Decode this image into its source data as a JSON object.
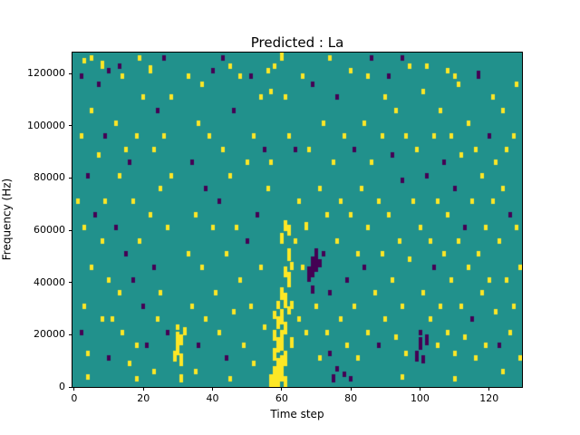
{
  "chart_data": {
    "type": "heatmap",
    "title": "Predicted : La",
    "xlabel": "Time step",
    "ylabel": "Frequency (Hz)",
    "x_ticks": [
      0,
      20,
      40,
      60,
      80,
      100,
      120
    ],
    "y_ticks": [
      0,
      20000,
      40000,
      60000,
      80000,
      100000,
      120000
    ],
    "x_range": [
      -0.5,
      129.5
    ],
    "y_range": [
      0,
      128000
    ],
    "grid_shape": [
      130,
      128
    ],
    "grid": false,
    "legend": "none",
    "colors": {
      "background": "#21918c",
      "positive": "#fde725",
      "negative": "#440154",
      "figure_background": "#ffffff",
      "axes_line": "#000000"
    },
    "cells_encoding": "[time_step, freq_bin(1000Hz per bin), value(1=yellow-high, 2=purple-low), vertical_span_bins]",
    "cells": [
      [
        57,
        0,
        1,
        5
      ],
      [
        57,
        85,
        1,
        2
      ],
      [
        57,
        112,
        1,
        2
      ],
      [
        58,
        0,
        1,
        4
      ],
      [
        58,
        2,
        1,
        6
      ],
      [
        58,
        10,
        1,
        5
      ],
      [
        58,
        18,
        1,
        4
      ],
      [
        58,
        26,
        1,
        3
      ],
      [
        58,
        122,
        1,
        2
      ],
      [
        59,
        0,
        1,
        3
      ],
      [
        59,
        3,
        1,
        8
      ],
      [
        59,
        13,
        1,
        6
      ],
      [
        59,
        22,
        1,
        5
      ],
      [
        59,
        30,
        1,
        3
      ],
      [
        60,
        2,
        1,
        10
      ],
      [
        60,
        14,
        1,
        8
      ],
      [
        60,
        24,
        1,
        6
      ],
      [
        60,
        33,
        1,
        5
      ],
      [
        60,
        55,
        1,
        4
      ],
      [
        60,
        125,
        1,
        3
      ],
      [
        61,
        0,
        1,
        4
      ],
      [
        61,
        8,
        1,
        6
      ],
      [
        61,
        20,
        1,
        5
      ],
      [
        61,
        30,
        1,
        6
      ],
      [
        61,
        42,
        1,
        4
      ],
      [
        61,
        60,
        1,
        4
      ],
      [
        61,
        110,
        1,
        2
      ],
      [
        62,
        28,
        1,
        3
      ],
      [
        62,
        38,
        1,
        6
      ],
      [
        62,
        48,
        1,
        5
      ],
      [
        62,
        58,
        1,
        4
      ],
      [
        62,
        95,
        1,
        2
      ],
      [
        63,
        15,
        1,
        4
      ],
      [
        63,
        30,
        1,
        3
      ],
      [
        63,
        45,
        1,
        3
      ],
      [
        29,
        10,
        1,
        4
      ],
      [
        30,
        12,
        1,
        6
      ],
      [
        30,
        18,
        1,
        3
      ],
      [
        30,
        22,
        1,
        2
      ],
      [
        31,
        2,
        1,
        3
      ],
      [
        31,
        8,
        1,
        5
      ],
      [
        31,
        16,
        1,
        4
      ],
      [
        32,
        20,
        1,
        3
      ],
      [
        68,
        40,
        2,
        6
      ],
      [
        69,
        36,
        2,
        3
      ],
      [
        69,
        42,
        2,
        8
      ],
      [
        70,
        44,
        2,
        6
      ],
      [
        70,
        50,
        2,
        3
      ],
      [
        71,
        46,
        2,
        3
      ],
      [
        99,
        10,
        2,
        4
      ],
      [
        100,
        14,
        2,
        5
      ],
      [
        100,
        20,
        2,
        2
      ],
      [
        101,
        9,
        2,
        3
      ],
      [
        102,
        16,
        2,
        4
      ],
      [
        74,
        12,
        2,
        2
      ],
      [
        75,
        2,
        2,
        3
      ],
      [
        76,
        6,
        2,
        2
      ],
      [
        78,
        4,
        2,
        2
      ],
      [
        80,
        2,
        2,
        2
      ],
      [
        4,
        3,
        1,
        2
      ],
      [
        18,
        2,
        1,
        2
      ],
      [
        45,
        2,
        1,
        2
      ],
      [
        95,
        3,
        1,
        2
      ],
      [
        110,
        2,
        1,
        2
      ],
      [
        124,
        5,
        1,
        2
      ],
      [
        2,
        95,
        1,
        2
      ],
      [
        2,
        118,
        2,
        2
      ],
      [
        2,
        20,
        2,
        2
      ],
      [
        1,
        70,
        1,
        2
      ],
      [
        3,
        60,
        1,
        2
      ],
      [
        3,
        30,
        1,
        2
      ],
      [
        3,
        124,
        1,
        2
      ],
      [
        4,
        80,
        2,
        2
      ],
      [
        4,
        12,
        1,
        2
      ],
      [
        5,
        45,
        1,
        2
      ],
      [
        5,
        105,
        1,
        2
      ],
      [
        5,
        125,
        1,
        2
      ],
      [
        6,
        65,
        2,
        2
      ],
      [
        7,
        115,
        2,
        2
      ],
      [
        7,
        88,
        1,
        2
      ],
      [
        8,
        55,
        1,
        2
      ],
      [
        8,
        25,
        1,
        2
      ],
      [
        8,
        122,
        1,
        3
      ],
      [
        9,
        95,
        2,
        2
      ],
      [
        9,
        70,
        1,
        2
      ],
      [
        10,
        40,
        1,
        2
      ],
      [
        10,
        10,
        2,
        2
      ],
      [
        10,
        120,
        2,
        2
      ],
      [
        11,
        25,
        1,
        2
      ],
      [
        12,
        100,
        1,
        2
      ],
      [
        12,
        60,
        2,
        2
      ],
      [
        13,
        35,
        1,
        2
      ],
      [
        13,
        80,
        1,
        2
      ],
      [
        13,
        122,
        2,
        2
      ],
      [
        14,
        20,
        1,
        2
      ],
      [
        14,
        118,
        1,
        2
      ],
      [
        15,
        50,
        2,
        2
      ],
      [
        15,
        90,
        1,
        2
      ],
      [
        16,
        85,
        2,
        2
      ],
      [
        16,
        8,
        1,
        2
      ],
      [
        17,
        70,
        1,
        2
      ],
      [
        17,
        40,
        2,
        2
      ],
      [
        18,
        95,
        1,
        2
      ],
      [
        18,
        15,
        1,
        2
      ],
      [
        19,
        55,
        1,
        2
      ],
      [
        19,
        125,
        1,
        2
      ],
      [
        20,
        110,
        1,
        2
      ],
      [
        20,
        30,
        2,
        2
      ],
      [
        21,
        15,
        2,
        2
      ],
      [
        22,
        120,
        1,
        3
      ],
      [
        22,
        65,
        1,
        2
      ],
      [
        23,
        45,
        2,
        2
      ],
      [
        23,
        90,
        1,
        2
      ],
      [
        23,
        5,
        1,
        2
      ],
      [
        24,
        25,
        1,
        2
      ],
      [
        24,
        105,
        2,
        2
      ],
      [
        25,
        75,
        1,
        2
      ],
      [
        25,
        35,
        1,
        2
      ],
      [
        26,
        95,
        1,
        2
      ],
      [
        26,
        125,
        2,
        2
      ],
      [
        27,
        60,
        1,
        2
      ],
      [
        27,
        20,
        2,
        2
      ],
      [
        28,
        110,
        1,
        2
      ],
      [
        28,
        80,
        1,
        2
      ],
      [
        33,
        50,
        1,
        2
      ],
      [
        33,
        118,
        1,
        2
      ],
      [
        34,
        85,
        2,
        2
      ],
      [
        34,
        30,
        1,
        2
      ],
      [
        35,
        65,
        1,
        2
      ],
      [
        35,
        5,
        1,
        2
      ],
      [
        36,
        15,
        2,
        2
      ],
      [
        36,
        100,
        1,
        2
      ],
      [
        37,
        45,
        1,
        2
      ],
      [
        37,
        115,
        1,
        2
      ],
      [
        38,
        75,
        2,
        2
      ],
      [
        38,
        25,
        1,
        2
      ],
      [
        39,
        95,
        1,
        2
      ],
      [
        40,
        60,
        1,
        2
      ],
      [
        40,
        120,
        2,
        2
      ],
      [
        41,
        35,
        1,
        2
      ],
      [
        42,
        70,
        2,
        2
      ],
      [
        42,
        20,
        1,
        2
      ],
      [
        43,
        90,
        1,
        2
      ],
      [
        43,
        125,
        2,
        2
      ],
      [
        44,
        50,
        1,
        2
      ],
      [
        44,
        10,
        2,
        2
      ],
      [
        45,
        80,
        1,
        2
      ],
      [
        45,
        122,
        1,
        2
      ],
      [
        46,
        28,
        1,
        2
      ],
      [
        46,
        105,
        2,
        2
      ],
      [
        47,
        60,
        1,
        2
      ],
      [
        48,
        40,
        1,
        2
      ],
      [
        48,
        118,
        1,
        2
      ],
      [
        49,
        15,
        1,
        2
      ],
      [
        50,
        85,
        1,
        2
      ],
      [
        50,
        55,
        2,
        2
      ],
      [
        51,
        30,
        1,
        2
      ],
      [
        51,
        118,
        2,
        2
      ],
      [
        52,
        95,
        1,
        2
      ],
      [
        52,
        8,
        1,
        2
      ],
      [
        53,
        65,
        2,
        2
      ],
      [
        54,
        45,
        1,
        2
      ],
      [
        54,
        110,
        1,
        2
      ],
      [
        55,
        22,
        1,
        2
      ],
      [
        55,
        90,
        2,
        2
      ],
      [
        56,
        75,
        1,
        2
      ],
      [
        56,
        120,
        1,
        2
      ],
      [
        64,
        55,
        1,
        2
      ],
      [
        64,
        90,
        2,
        2
      ],
      [
        65,
        25,
        1,
        2
      ],
      [
        65,
        70,
        1,
        2
      ],
      [
        66,
        45,
        1,
        2
      ],
      [
        66,
        118,
        1,
        2
      ],
      [
        67,
        60,
        1,
        3
      ],
      [
        67,
        20,
        1,
        2
      ],
      [
        68,
        90,
        1,
        2
      ],
      [
        69,
        115,
        2,
        2
      ],
      [
        70,
        30,
        1,
        2
      ],
      [
        71,
        75,
        1,
        2
      ],
      [
        71,
        10,
        1,
        2
      ],
      [
        72,
        50,
        2,
        2
      ],
      [
        72,
        100,
        1,
        2
      ],
      [
        73,
        65,
        1,
        2
      ],
      [
        73,
        20,
        1,
        2
      ],
      [
        74,
        35,
        2,
        2
      ],
      [
        74,
        125,
        1,
        2
      ],
      [
        75,
        85,
        1,
        2
      ],
      [
        76,
        55,
        1,
        2
      ],
      [
        76,
        110,
        2,
        2
      ],
      [
        77,
        25,
        1,
        2
      ],
      [
        77,
        70,
        1,
        2
      ],
      [
        78,
        95,
        1,
        2
      ],
      [
        79,
        40,
        2,
        2
      ],
      [
        79,
        15,
        1,
        2
      ],
      [
        80,
        65,
        1,
        2
      ],
      [
        80,
        120,
        1,
        2
      ],
      [
        81,
        30,
        1,
        2
      ],
      [
        81,
        90,
        2,
        2
      ],
      [
        82,
        50,
        1,
        2
      ],
      [
        82,
        10,
        1,
        2
      ],
      [
        83,
        75,
        1,
        2
      ],
      [
        84,
        45,
        2,
        2
      ],
      [
        84,
        100,
        1,
        2
      ],
      [
        85,
        20,
        1,
        2
      ],
      [
        85,
        60,
        1,
        2
      ],
      [
        85,
        118,
        1,
        2
      ],
      [
        86,
        85,
        1,
        2
      ],
      [
        86,
        125,
        2,
        2
      ],
      [
        87,
        35,
        1,
        2
      ],
      [
        88,
        70,
        1,
        2
      ],
      [
        88,
        15,
        2,
        2
      ],
      [
        89,
        95,
        1,
        2
      ],
      [
        89,
        50,
        1,
        2
      ],
      [
        90,
        110,
        1,
        2
      ],
      [
        90,
        25,
        1,
        2
      ],
      [
        91,
        65,
        1,
        2
      ],
      [
        91,
        118,
        2,
        2
      ],
      [
        92,
        40,
        1,
        2
      ],
      [
        92,
        88,
        2,
        2
      ],
      [
        93,
        18,
        1,
        2
      ],
      [
        93,
        105,
        1,
        2
      ],
      [
        94,
        55,
        1,
        2
      ],
      [
        95,
        78,
        2,
        2
      ],
      [
        95,
        30,
        1,
        2
      ],
      [
        95,
        125,
        2,
        2
      ],
      [
        96,
        95,
        1,
        2
      ],
      [
        96,
        12,
        1,
        2
      ],
      [
        97,
        48,
        1,
        2
      ],
      [
        97,
        122,
        1,
        2
      ],
      [
        98,
        70,
        1,
        2
      ],
      [
        99,
        90,
        1,
        2
      ],
      [
        100,
        60,
        1,
        2
      ],
      [
        101,
        35,
        1,
        2
      ],
      [
        101,
        112,
        1,
        2
      ],
      [
        102,
        80,
        2,
        2
      ],
      [
        102,
        122,
        1,
        2
      ],
      [
        103,
        25,
        1,
        2
      ],
      [
        103,
        55,
        1,
        2
      ],
      [
        104,
        95,
        1,
        2
      ],
      [
        104,
        45,
        2,
        2
      ],
      [
        105,
        70,
        1,
        2
      ],
      [
        105,
        15,
        1,
        2
      ],
      [
        106,
        105,
        1,
        2
      ],
      [
        106,
        30,
        1,
        2
      ],
      [
        107,
        50,
        1,
        2
      ],
      [
        107,
        85,
        2,
        2
      ],
      [
        108,
        20,
        1,
        2
      ],
      [
        108,
        65,
        1,
        2
      ],
      [
        108,
        120,
        1,
        2
      ],
      [
        109,
        95,
        1,
        2
      ],
      [
        109,
        40,
        1,
        2
      ],
      [
        110,
        75,
        2,
        2
      ],
      [
        110,
        12,
        1,
        2
      ],
      [
        110,
        118,
        1,
        2
      ],
      [
        111,
        55,
        1,
        2
      ],
      [
        111,
        115,
        1,
        2
      ],
      [
        112,
        30,
        1,
        2
      ],
      [
        112,
        88,
        1,
        2
      ],
      [
        113,
        60,
        2,
        2
      ],
      [
        113,
        18,
        1,
        2
      ],
      [
        114,
        100,
        1,
        2
      ],
      [
        114,
        45,
        1,
        2
      ],
      [
        115,
        70,
        1,
        2
      ],
      [
        115,
        25,
        2,
        2
      ],
      [
        116,
        90,
        1,
        2
      ],
      [
        116,
        10,
        1,
        2
      ],
      [
        117,
        50,
        1,
        2
      ],
      [
        117,
        118,
        2,
        3
      ],
      [
        118,
        35,
        1,
        2
      ],
      [
        118,
        80,
        1,
        2
      ],
      [
        119,
        60,
        1,
        2
      ],
      [
        119,
        15,
        1,
        2
      ],
      [
        120,
        95,
        2,
        2
      ],
      [
        120,
        40,
        1,
        2
      ],
      [
        121,
        70,
        1,
        2
      ],
      [
        121,
        110,
        1,
        2
      ],
      [
        122,
        28,
        1,
        2
      ],
      [
        122,
        85,
        1,
        2
      ],
      [
        123,
        55,
        1,
        2
      ],
      [
        123,
        15,
        2,
        2
      ],
      [
        124,
        75,
        1,
        2
      ],
      [
        124,
        105,
        1,
        2
      ],
      [
        125,
        40,
        1,
        2
      ],
      [
        125,
        90,
        1,
        2
      ],
      [
        126,
        20,
        1,
        2
      ],
      [
        126,
        65,
        2,
        2
      ],
      [
        127,
        95,
        1,
        2
      ],
      [
        127,
        30,
        1,
        2
      ],
      [
        128,
        60,
        1,
        2
      ],
      [
        128,
        115,
        1,
        2
      ],
      [
        129,
        45,
        1,
        2
      ],
      [
        129,
        10,
        1,
        2
      ]
    ]
  }
}
